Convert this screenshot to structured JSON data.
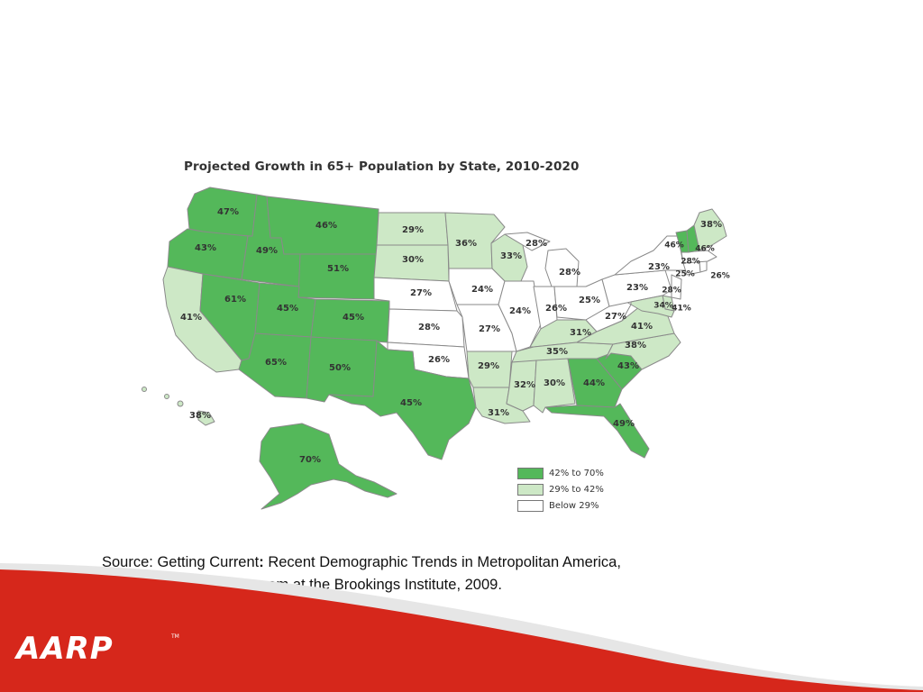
{
  "slide": {
    "map_title": "Projected Growth in 65+ Population by State, 2010-2020",
    "source_prefix": "Source: Getting Current",
    "source_colon": ":",
    "source_rest": " Recent Demographic Trends in Metropolitan America,",
    "source_line2": "Metropolitan Policy Program at the Brookings Institute, 2009.",
    "logo_text": "AARP",
    "logo_tm": "TM"
  },
  "colors": {
    "high": "#54b85a",
    "mid": "#cde8c6",
    "low": "#ffffff",
    "footer_red": "#d6271b",
    "logo": "#ffffff"
  },
  "legend": {
    "items": [
      {
        "label": "42% to 70%",
        "class": "high"
      },
      {
        "label": "29% to 42%",
        "class": "mid"
      },
      {
        "label": "Below 29%",
        "class": "low"
      }
    ]
  },
  "states": [
    {
      "id": "WA",
      "value": 47,
      "label": "47%",
      "class": "high"
    },
    {
      "id": "OR",
      "value": 43,
      "label": "43%",
      "class": "high"
    },
    {
      "id": "CA",
      "value": 41,
      "label": "41%",
      "class": "mid"
    },
    {
      "id": "ID",
      "value": 49,
      "label": "49%",
      "class": "high"
    },
    {
      "id": "NV",
      "value": 61,
      "label": "61%",
      "class": "high"
    },
    {
      "id": "MT",
      "value": 46,
      "label": "46%",
      "class": "high"
    },
    {
      "id": "WY",
      "value": 51,
      "label": "51%",
      "class": "high"
    },
    {
      "id": "UT",
      "value": 45,
      "label": "45%",
      "class": "high"
    },
    {
      "id": "AZ",
      "value": 65,
      "label": "65%",
      "class": "high"
    },
    {
      "id": "CO",
      "value": 45,
      "label": "45%",
      "class": "high"
    },
    {
      "id": "NM",
      "value": 50,
      "label": "50%",
      "class": "high"
    },
    {
      "id": "ND",
      "value": 29,
      "label": "29%",
      "class": "mid"
    },
    {
      "id": "SD",
      "value": 30,
      "label": "30%",
      "class": "mid"
    },
    {
      "id": "NE",
      "value": 27,
      "label": "27%",
      "class": "low"
    },
    {
      "id": "KS",
      "value": 28,
      "label": "28%",
      "class": "low"
    },
    {
      "id": "OK",
      "value": 26,
      "label": "26%",
      "class": "low"
    },
    {
      "id": "TX",
      "value": 45,
      "label": "45%",
      "class": "high"
    },
    {
      "id": "MN",
      "value": 36,
      "label": "36%",
      "class": "mid"
    },
    {
      "id": "IA",
      "value": 24,
      "label": "24%",
      "class": "low"
    },
    {
      "id": "MO",
      "value": 27,
      "label": "27%",
      "class": "low"
    },
    {
      "id": "AR",
      "value": 29,
      "label": "29%",
      "class": "mid"
    },
    {
      "id": "LA",
      "value": 31,
      "label": "31%",
      "class": "mid"
    },
    {
      "id": "WI",
      "value": 33,
      "label": "33%",
      "class": "mid"
    },
    {
      "id": "MI",
      "value": 28,
      "label": "28%",
      "class": "low"
    },
    {
      "id": "MI_UP",
      "value": 28,
      "label": "28%",
      "class": "low"
    },
    {
      "id": "IL",
      "value": 24,
      "label": "24%",
      "class": "low"
    },
    {
      "id": "IN",
      "value": 26,
      "label": "26%",
      "class": "low"
    },
    {
      "id": "OH",
      "value": 25,
      "label": "25%",
      "class": "low"
    },
    {
      "id": "KY",
      "value": 31,
      "label": "31%",
      "class": "mid"
    },
    {
      "id": "TN",
      "value": 35,
      "label": "35%",
      "class": "mid"
    },
    {
      "id": "MS",
      "value": 32,
      "label": "32%",
      "class": "mid"
    },
    {
      "id": "AL",
      "value": 30,
      "label": "30%",
      "class": "mid"
    },
    {
      "id": "GA",
      "value": 44,
      "label": "44%",
      "class": "high"
    },
    {
      "id": "FL",
      "value": 49,
      "label": "49%",
      "class": "high"
    },
    {
      "id": "SC",
      "value": 43,
      "label": "43%",
      "class": "high"
    },
    {
      "id": "NC",
      "value": 38,
      "label": "38%",
      "class": "mid"
    },
    {
      "id": "VA",
      "value": 41,
      "label": "41%",
      "class": "mid"
    },
    {
      "id": "WV",
      "value": 27,
      "label": "27%",
      "class": "low"
    },
    {
      "id": "PA",
      "value": 23,
      "label": "23%",
      "class": "low"
    },
    {
      "id": "NY",
      "value": 23,
      "label": "23%",
      "class": "low"
    },
    {
      "id": "NJ",
      "value": 28,
      "label": "28%",
      "class": "low"
    },
    {
      "id": "DE",
      "value": 34,
      "label": "34%",
      "class": "mid"
    },
    {
      "id": "MD",
      "value": 41,
      "label": "41%",
      "class": "mid"
    },
    {
      "id": "CT",
      "value": 25,
      "label": "25%",
      "class": "low"
    },
    {
      "id": "RI",
      "value": 26,
      "label": "26%",
      "class": "low"
    },
    {
      "id": "MA",
      "value": 28,
      "label": "28%",
      "class": "low"
    },
    {
      "id": "VT",
      "value": 46,
      "label": "46%",
      "class": "high"
    },
    {
      "id": "NH",
      "value": 46,
      "label": "46%",
      "class": "high"
    },
    {
      "id": "ME",
      "value": 38,
      "label": "38%",
      "class": "mid"
    },
    {
      "id": "AK",
      "value": 70,
      "label": "70%",
      "class": "high"
    },
    {
      "id": "HI",
      "value": 38,
      "label": "38%",
      "class": "mid"
    }
  ]
}
